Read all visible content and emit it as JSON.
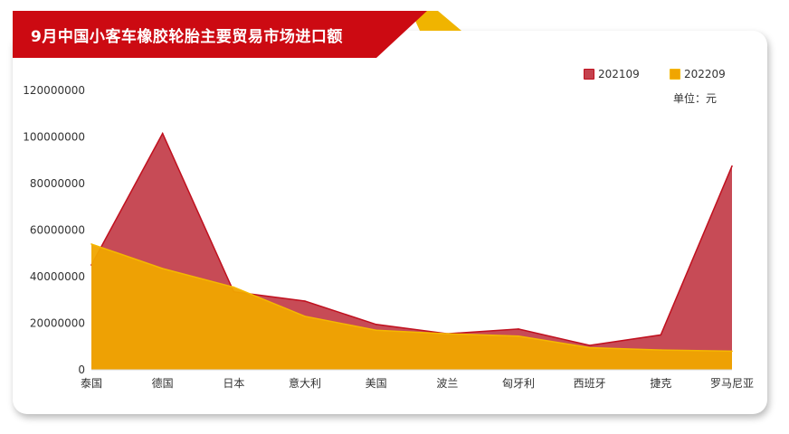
{
  "title": "9月中国小客车橡胶轮胎主要贸易市场进口额",
  "unit_label": "单位：元",
  "colors": {
    "banner": "#cc0a12",
    "banner_accent": "#f0b400",
    "series_2021": "#c4414d",
    "series_2021_stroke": "#c0101e",
    "series_2022": "#f0a500",
    "series_2022_stroke": "#f5b800"
  },
  "chart_data": {
    "type": "area",
    "title": "9月中国小客车橡胶轮胎主要贸易市场进口额",
    "xlabel": "",
    "ylabel": "",
    "categories": [
      "泰国",
      "德国",
      "日本",
      "意大利",
      "美国",
      "波兰",
      "匈牙利",
      "西班牙",
      "捷克",
      "罗马尼亚"
    ],
    "y_ticks": [
      "0",
      "20000000",
      "40000000",
      "60000000",
      "80000000",
      "100000000",
      "120000000"
    ],
    "ylim": [
      0,
      120000000
    ],
    "grid": false,
    "legend_position": "top-right",
    "series": [
      {
        "name": "202109",
        "values": [
          45000000,
          101500000,
          33500000,
          29500000,
          19500000,
          15500000,
          17500000,
          10500000,
          15000000,
          87500000
        ]
      },
      {
        "name": "202209",
        "values": [
          54000000,
          43500000,
          35500000,
          23000000,
          17000000,
          15500000,
          14500000,
          9500000,
          8500000,
          8000000
        ]
      }
    ]
  }
}
